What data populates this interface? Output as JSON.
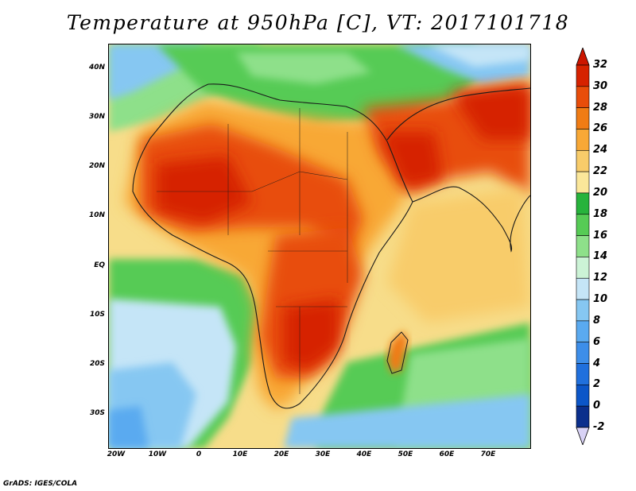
{
  "title": "Temperature at 950hPa [C], VT: 2017101718",
  "credit": "GrADS: IGES/COLA",
  "map": {
    "lat_labels": [
      "40N",
      "30N",
      "20N",
      "10N",
      "EQ",
      "10S",
      "20S",
      "30S"
    ],
    "lon_labels": [
      "20W",
      "10W",
      "0",
      "10E",
      "20E",
      "30E",
      "40E",
      "50E",
      "60E",
      "70E"
    ],
    "lon_range": [
      -22,
      80
    ],
    "lat_range": [
      -36,
      45
    ]
  },
  "colorbar": {
    "labels": [
      "32",
      "30",
      "28",
      "26",
      "24",
      "22",
      "20",
      "18",
      "16",
      "14",
      "12",
      "10",
      "8",
      "6",
      "4",
      "2",
      "0",
      "-2"
    ],
    "colors": [
      "#d62200",
      "#e84d0a",
      "#f07c14",
      "#f8a836",
      "#f8cc6a",
      "#fbe79a",
      "#27b33c",
      "#56cb55",
      "#8ee08a",
      "#ccf3d6",
      "#c5e5f7",
      "#86c7f2",
      "#5aaaf0",
      "#3d8ee9",
      "#2070dd",
      "#0c56c8",
      "#0b2f8c"
    ],
    "top_color": "#cc1600",
    "bottom_color": "#d8d2f5"
  }
}
